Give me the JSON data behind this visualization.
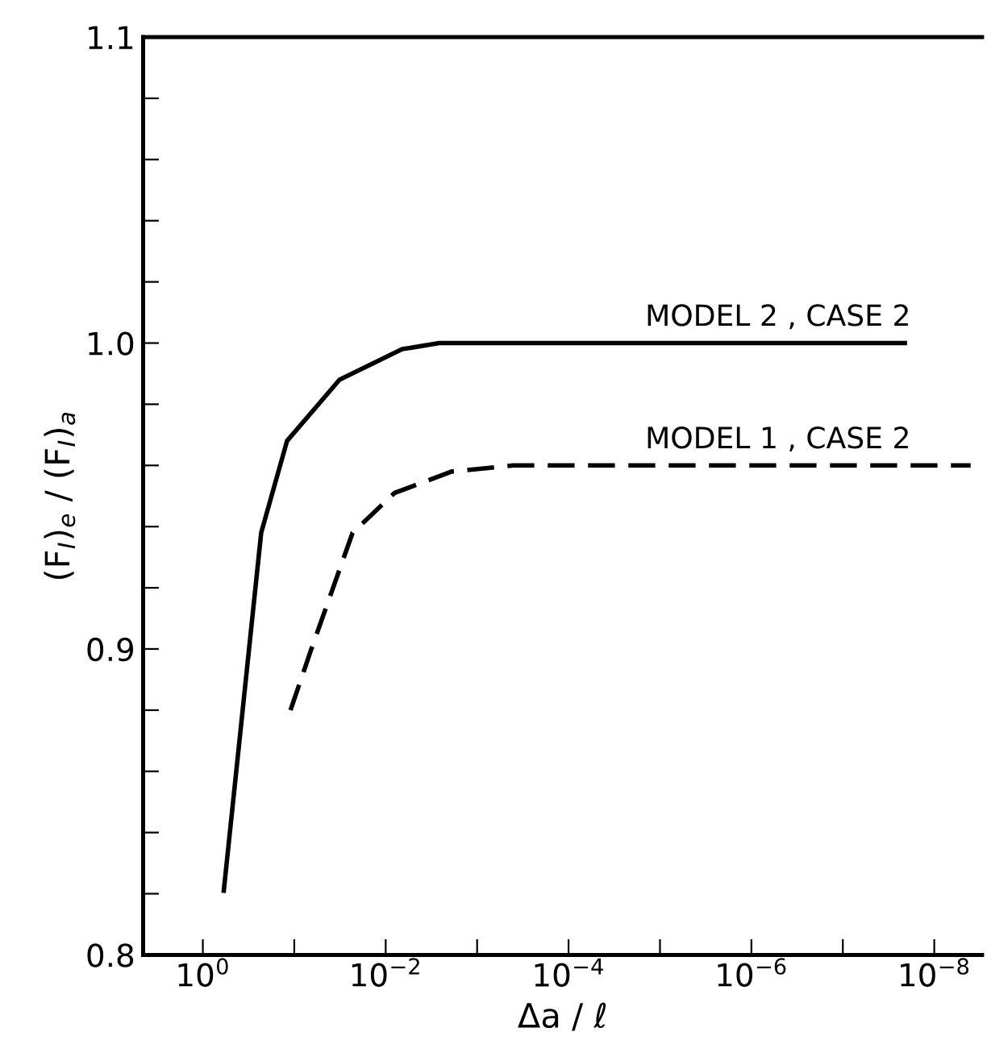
{
  "chart_data": {
    "type": "line",
    "xlabel": "Δa / ℓ",
    "ylabel": "(F$_{I}$)$_{e}$ / (F$_{I}$)$_{a}$",
    "log": "x",
    "grid": false,
    "legend": false,
    "marker": "none",
    "xlim": [
      4.5,
      3e-09
    ],
    "ylim": [
      0.8,
      1.1
    ],
    "xticks": [
      {
        "value": 1,
        "label": "10$^{0}$"
      },
      {
        "value": 0.1,
        "label": null
      },
      {
        "value": 0.01,
        "label": "10$^{−2}$"
      },
      {
        "value": 0.001,
        "label": null
      },
      {
        "value": 0.0001,
        "label": "10$^{−4}$"
      },
      {
        "value": 1e-05,
        "label": null
      },
      {
        "value": 1e-06,
        "label": "10$^{−6}$"
      },
      {
        "value": 1e-07,
        "label": null
      },
      {
        "value": 1e-08,
        "label": "10$^{−8}$"
      }
    ],
    "yticks": [
      {
        "value": 0.8,
        "label": "0.8"
      },
      {
        "value": 0.82,
        "label": null
      },
      {
        "value": 0.84,
        "label": null
      },
      {
        "value": 0.86,
        "label": null
      },
      {
        "value": 0.88,
        "label": null
      },
      {
        "value": 0.9,
        "label": "0.9"
      },
      {
        "value": 0.92,
        "label": null
      },
      {
        "value": 0.94,
        "label": null
      },
      {
        "value": 0.96,
        "label": null
      },
      {
        "value": 0.98,
        "label": null
      },
      {
        "value": 1.0,
        "label": "1.0"
      },
      {
        "value": 1.02,
        "label": null
      },
      {
        "value": 1.04,
        "label": null
      },
      {
        "value": 1.06,
        "label": null
      },
      {
        "value": 1.08,
        "label": null
      },
      {
        "value": 1.1,
        "label": "1.1"
      }
    ],
    "series": [
      {
        "name": "MODEL 2 , CASE 2",
        "color": "#000000",
        "line_style": "solid",
        "x": [
          0.59,
          0.23,
          0.12,
          0.032,
          0.0066,
          0.0026,
          2.1e-08
        ],
        "values": [
          0.821,
          0.938,
          0.968,
          0.988,
          0.998,
          1.0,
          1.0
        ]
      },
      {
        "name": "MODEL 1 , CASE 2",
        "color": "#000000",
        "line_style": "dashed",
        "x": [
          0.11,
          0.065,
          0.023,
          0.008,
          0.0019,
          0.0004,
          4e-09
        ],
        "values": [
          0.88,
          0.9,
          0.938,
          0.951,
          0.958,
          0.96,
          0.96
        ]
      }
    ]
  }
}
